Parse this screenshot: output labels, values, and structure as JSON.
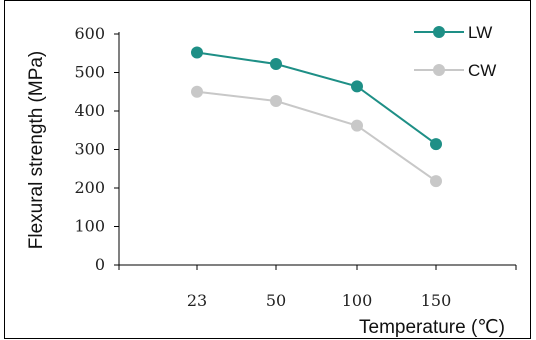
{
  "chart_data": {
    "type": "line",
    "xlabel": "Temperature (℃)",
    "ylabel": "Flexural strength (MPa)",
    "categories": [
      "23",
      "50",
      "100",
      "150"
    ],
    "ylim": [
      0,
      600
    ],
    "yticks": [
      "0",
      "100",
      "200",
      "300",
      "400",
      "500",
      "600"
    ],
    "grid": false,
    "legend_position": "top-right",
    "series": [
      {
        "name": "LW",
        "color": "#1e8f86",
        "values": [
          552,
          522,
          464,
          314
        ]
      },
      {
        "name": "CW",
        "color": "#c8c8c8",
        "values": [
          450,
          426,
          362,
          218
        ]
      }
    ]
  }
}
